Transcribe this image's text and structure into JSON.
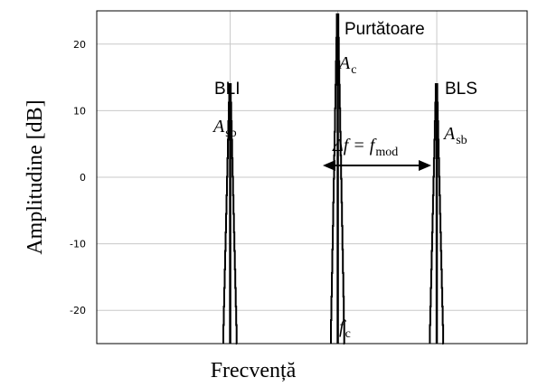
{
  "chart_data": {
    "type": "line",
    "xlabel": "Frecvență",
    "ylabel": "Amplitudine [dB]",
    "ylim": [
      -25,
      25
    ],
    "yticks": [
      20,
      10,
      0,
      -10,
      -20
    ],
    "xlim": [
      0,
      1
    ],
    "grid": true,
    "series": [
      {
        "peak_x": 0.31,
        "peak_y": 14
      },
      {
        "peak_x": 0.56,
        "peak_y": 24.5
      },
      {
        "peak_x": 0.79,
        "peak_y": 14
      }
    ],
    "annotations": {
      "carrier": "Purtătoare",
      "lsb": "BLI",
      "usb": "BLS",
      "ac_main": "A",
      "ac_sub": "c",
      "asb_main": "A",
      "asb_sub": "sb",
      "delta_main": "Δf = f",
      "delta_sub": "mod",
      "fc_main": "f",
      "fc_sub": "c"
    }
  }
}
